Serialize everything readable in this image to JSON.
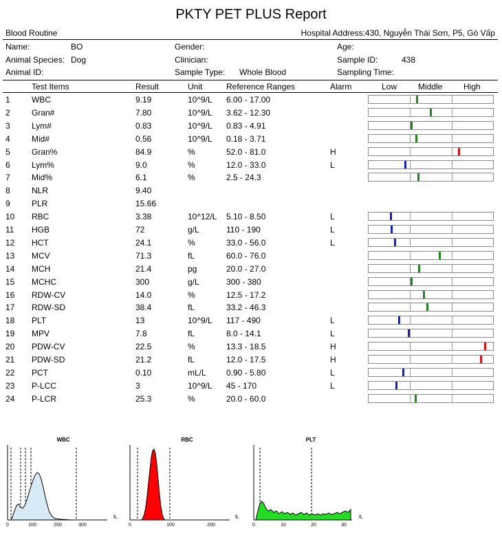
{
  "report": {
    "title": "PKTY PET PLUS Report",
    "section": "Blood Routine",
    "hospital_address": "Hospital Address:430, Nguyễn Thái Sơn, P5, Gò Vấp"
  },
  "patient": {
    "name_label": "Name:",
    "name": "BO",
    "species_label": "Animal Species:",
    "species": "Dog",
    "animal_id_label": "Animal ID:",
    "animal_id": "",
    "gender_label": "Gender:",
    "gender": "",
    "clinician_label": "Clinician:",
    "clinician": "",
    "sample_type_label": "Sample Type:",
    "sample_type": "Whole Blood",
    "age_label": "Age:",
    "age": "",
    "sample_id_label": "Sample ID:",
    "sample_id": "438",
    "sampling_time_label": "Sampling Time:",
    "sampling_time": ""
  },
  "table": {
    "headers": {
      "test_items": "Test Items",
      "result": "Result",
      "unit": "Unit",
      "ref": "Reference Ranges",
      "alarm": "Alarm",
      "low": "Low",
      "middle": "Middle",
      "high": "High"
    },
    "rows": [
      {
        "no": "1",
        "item": "WBC",
        "result": "9.19",
        "unit": "10^9/L",
        "ref": "6.00 - 17.00",
        "alarm": "",
        "pos": 0.13,
        "color": "#1a8a1a"
      },
      {
        "no": "2",
        "item": "Gran#",
        "result": "7.80",
        "unit": "10^9/L",
        "ref": "3.62 - 12.30",
        "alarm": "",
        "pos": 0.46,
        "color": "#1a8a1a"
      },
      {
        "no": "3",
        "item": "Lym#",
        "result": "0.83",
        "unit": "10^9/L",
        "ref": "0.83 - 4.91",
        "alarm": "",
        "pos": 0.0,
        "color": "#1a8a1a"
      },
      {
        "no": "4",
        "item": "Mid#",
        "result": "0.56",
        "unit": "10^9/L",
        "ref": "0.18 - 3.71",
        "alarm": "",
        "pos": 0.11,
        "color": "#1a8a1a"
      },
      {
        "no": "5",
        "item": "Gran%",
        "result": "84.9",
        "unit": "%",
        "ref": "52.0 - 81.0",
        "alarm": "H",
        "pos": 1.13,
        "color": "#e01010"
      },
      {
        "no": "6",
        "item": "Lym%",
        "result": "9.0",
        "unit": "%",
        "ref": "12.0 - 33.0",
        "alarm": "L",
        "pos": -0.14,
        "color": "#1020d0"
      },
      {
        "no": "7",
        "item": "Mid%",
        "result": "6.1",
        "unit": "%",
        "ref": "2.5 - 24.3",
        "alarm": "",
        "pos": 0.17,
        "color": "#1a8a1a"
      },
      {
        "no": "8",
        "item": "NLR",
        "result": "9.40",
        "unit": "",
        "ref": "",
        "alarm": "",
        "pos": null,
        "color": ""
      },
      {
        "no": "9",
        "item": "PLR",
        "result": "15.66",
        "unit": "",
        "ref": "",
        "alarm": "",
        "pos": null,
        "color": ""
      },
      {
        "no": "10",
        "item": "RBC",
        "result": "3.38",
        "unit": "10^12/L",
        "ref": "5.10 - 8.50",
        "alarm": "L",
        "pos": -0.5,
        "color": "#1020d0"
      },
      {
        "no": "11",
        "item": "HGB",
        "result": "72",
        "unit": "g/L",
        "ref": "110 - 190",
        "alarm": "L",
        "pos": -0.48,
        "color": "#1020d0"
      },
      {
        "no": "12",
        "item": "HCT",
        "result": "24.1",
        "unit": "%",
        "ref": "33.0 - 56.0",
        "alarm": "L",
        "pos": -0.39,
        "color": "#1020d0"
      },
      {
        "no": "13",
        "item": "MCV",
        "result": "71.3",
        "unit": "fL",
        "ref": "60.0 - 76.0",
        "alarm": "",
        "pos": 0.68,
        "color": "#1a8a1a"
      },
      {
        "no": "14",
        "item": "MCH",
        "result": "21.4",
        "unit": "pg",
        "ref": "20.0 - 27.0",
        "alarm": "",
        "pos": 0.18,
        "color": "#1a8a1a"
      },
      {
        "no": "15",
        "item": "MCHC",
        "result": "300",
        "unit": "g/L",
        "ref": "300 - 380",
        "alarm": "",
        "pos": 0.0,
        "color": "#1a8a1a"
      },
      {
        "no": "16",
        "item": "RDW-CV",
        "result": "14.0",
        "unit": "%",
        "ref": "12.5 - 17.2",
        "alarm": "",
        "pos": 0.3,
        "color": "#1a8a1a"
      },
      {
        "no": "17",
        "item": "RDW-SD",
        "result": "38.4",
        "unit": "fL",
        "ref": "33.2 - 46.3",
        "alarm": "",
        "pos": 0.38,
        "color": "#1a8a1a"
      },
      {
        "no": "18",
        "item": "PLT",
        "result": "13",
        "unit": "10^9/L",
        "ref": "117 - 490",
        "alarm": "L",
        "pos": -0.3,
        "color": "#1020d0"
      },
      {
        "no": "19",
        "item": "MPV",
        "result": "7.8",
        "unit": "fL",
        "ref": "8.0 - 14.1",
        "alarm": "L",
        "pos": -0.06,
        "color": "#1020d0"
      },
      {
        "no": "20",
        "item": "PDW-CV",
        "result": "22.5",
        "unit": "%",
        "ref": "13.3 - 18.5",
        "alarm": "H",
        "pos": 1.75,
        "color": "#e01010"
      },
      {
        "no": "21",
        "item": "PDW-SD",
        "result": "21.2",
        "unit": "fL",
        "ref": "12.0 - 17.5",
        "alarm": "H",
        "pos": 1.65,
        "color": "#e01010"
      },
      {
        "no": "22",
        "item": "PCT",
        "result": "0.10",
        "unit": "mL/L",
        "ref": "0.90 - 5.80",
        "alarm": "L",
        "pos": -0.2,
        "color": "#1020d0"
      },
      {
        "no": "23",
        "item": "P-LCC",
        "result": "3",
        "unit": "10^9/L",
        "ref": "45 - 170",
        "alarm": "L",
        "pos": -0.36,
        "color": "#1020d0"
      },
      {
        "no": "24",
        "item": "P-LCR",
        "result": "25.3",
        "unit": "%",
        "ref": "20.0 - 60.0",
        "alarm": "",
        "pos": 0.1,
        "color": "#1a8a1a"
      }
    ]
  },
  "histograms": [
    {
      "id": "wbc",
      "title": "WBC",
      "unit": "fL",
      "ticks": [
        "0",
        "100",
        "200",
        "300"
      ],
      "fill": "#d6eaf8",
      "stroke": "#000"
    },
    {
      "id": "rbc",
      "title": "RBC",
      "unit": "fL",
      "ticks": [
        "0",
        "100",
        "200"
      ],
      "fill": "#ff0000",
      "stroke": "#000"
    },
    {
      "id": "plt",
      "title": "PLT",
      "unit": "fL",
      "ticks": [
        "0",
        "10",
        "20",
        "30"
      ],
      "fill": "#22dd22",
      "stroke": "#000"
    }
  ]
}
